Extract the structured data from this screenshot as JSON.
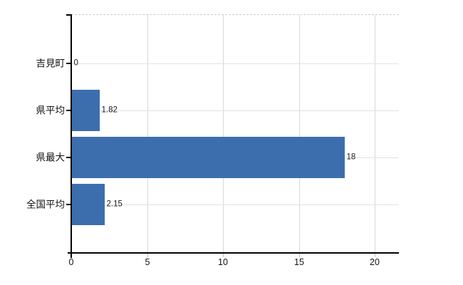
{
  "chart_data": {
    "type": "bar",
    "orientation": "horizontal",
    "title": "",
    "categories": [
      "吉見町",
      "県平均",
      "県最大",
      "全国平均"
    ],
    "values": [
      0,
      1.82,
      18,
      2.15
    ],
    "value_labels": [
      "0",
      "1.82",
      "18",
      "2.15"
    ],
    "x_tick_labels": [
      "0",
      "5",
      "10",
      "15",
      "20"
    ],
    "x_ticks": [
      0,
      5,
      10,
      15,
      20
    ],
    "xlim": [
      0,
      21.6
    ],
    "xlabel": "",
    "ylabel": "",
    "grid": true,
    "legend": false,
    "bar_color": "#3c6eae",
    "axis_color": "#000000",
    "vertical_gridline_color": "#d9d9d9",
    "horizontal_gridline_color": "#dfe3df",
    "top_border_style": "dashed",
    "text_color": "#1a1a1a",
    "background_color": "#ffffff"
  }
}
